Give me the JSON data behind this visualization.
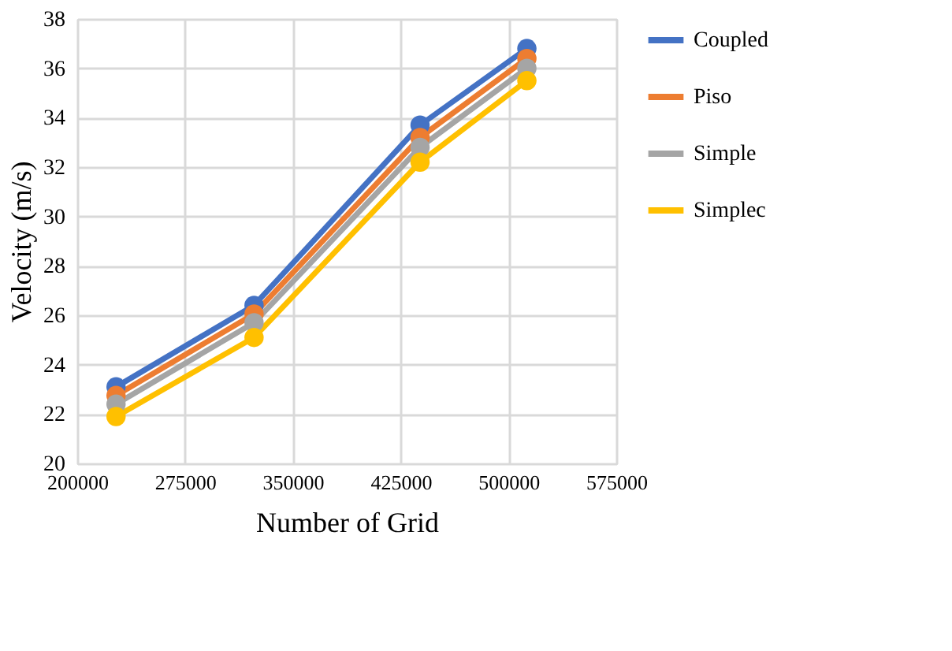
{
  "chart_data": {
    "type": "line",
    "xlabel": "Number of Grid",
    "ylabel": "Velocity (m/s)",
    "x": [
      227000,
      323000,
      438500,
      512800
    ],
    "series": [
      {
        "name": "Coupled",
        "color": "#4472c4",
        "values": [
          23.1,
          26.4,
          33.7,
          36.8
        ]
      },
      {
        "name": "Piso",
        "color": "#ed7d31",
        "values": [
          22.75,
          26.05,
          33.2,
          36.4
        ]
      },
      {
        "name": "Simple",
        "color": "#a5a5a5",
        "values": [
          22.4,
          25.7,
          32.8,
          36.0
        ]
      },
      {
        "name": "Simplec",
        "color": "#ffc000",
        "values": [
          21.9,
          25.1,
          32.2,
          35.5
        ]
      }
    ],
    "xlim": [
      200000,
      575000
    ],
    "xticks": [
      200000,
      275000,
      350000,
      425000,
      500000,
      575000
    ],
    "ylim": [
      20,
      38
    ],
    "yticks": [
      20,
      22,
      24,
      26,
      28,
      30,
      32,
      34,
      36,
      38
    ],
    "grid": true,
    "legend": "right",
    "marker": "circle",
    "line_style": "solid"
  }
}
